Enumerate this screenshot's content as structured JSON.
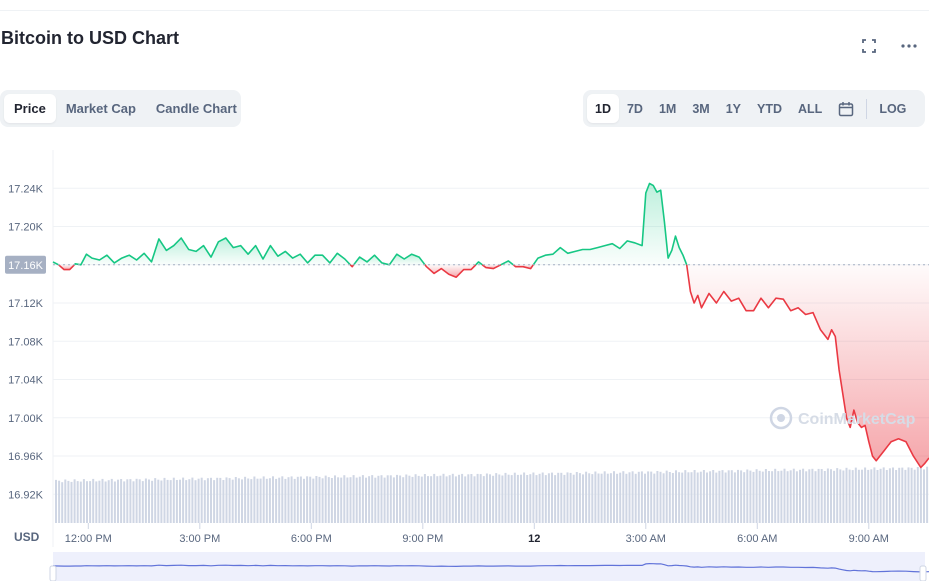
{
  "header": {
    "title": "Bitcoin to USD Chart"
  },
  "tabs": [
    {
      "label": "Price",
      "active": true
    },
    {
      "label": "Market Cap",
      "active": false
    },
    {
      "label": "Candle Chart",
      "active": false
    }
  ],
  "ranges": [
    {
      "label": "1D",
      "active": true
    },
    {
      "label": "7D",
      "active": false
    },
    {
      "label": "1M",
      "active": false
    },
    {
      "label": "3M",
      "active": false
    },
    {
      "label": "1Y",
      "active": false
    },
    {
      "label": "YTD",
      "active": false
    },
    {
      "label": "ALL",
      "active": false
    }
  ],
  "log_label": "LOG",
  "currency_label": "USD",
  "watermark": "CoinMarketCap",
  "colors": {
    "up": "#16c784",
    "down": "#ea3943",
    "volume": "#cfd6e4",
    "navigator": "#6173d9"
  },
  "chart_data": {
    "type": "line",
    "title": "Bitcoin to USD Chart",
    "ylabel": "USD",
    "ylim": [
      16.89,
      17.28
    ],
    "y_ticks": [
      "16.92K",
      "16.96K",
      "17.00K",
      "17.04K",
      "17.08K",
      "17.12K",
      "17.16K",
      "17.20K",
      "17.24K"
    ],
    "y_tick_values": [
      16.92,
      16.96,
      17.0,
      17.04,
      17.08,
      17.12,
      17.16,
      17.2,
      17.24
    ],
    "reference_price": 17.16,
    "reference_label": "17.16K",
    "x_ticks": [
      "12:00 PM",
      "3:00 PM",
      "6:00 PM",
      "9:00 PM",
      "12",
      "3:00 AM",
      "6:00 AM",
      "9:00 AM"
    ],
    "x_tick_hours": [
      12,
      15,
      18,
      21,
      24,
      27,
      30,
      33
    ],
    "xlim_hours": [
      11.05,
      34.62
    ],
    "series": [
      {
        "x": [
          11.05,
          11.2,
          11.35,
          11.5,
          11.65,
          11.8,
          11.95,
          12.1,
          12.3,
          12.5,
          12.7,
          12.9,
          13.1,
          13.3,
          13.5,
          13.7,
          13.9,
          14.1,
          14.3,
          14.5,
          14.7,
          14.9,
          15.1,
          15.3,
          15.5,
          15.7,
          15.9,
          16.1,
          16.3,
          16.5,
          16.7,
          16.9,
          17.1,
          17.3,
          17.5,
          17.7,
          17.9,
          18.1,
          18.3,
          18.5,
          18.7,
          18.9,
          19.1,
          19.3,
          19.5,
          19.7,
          19.9,
          20.1,
          20.3,
          20.5,
          20.7,
          20.9,
          21.1,
          21.3,
          21.5,
          21.7,
          21.9,
          22.1,
          22.3,
          22.5,
          22.7,
          22.9,
          23.1,
          23.3,
          23.5,
          23.7,
          23.9,
          24.1,
          24.3,
          24.5,
          24.7,
          24.9,
          25.1,
          25.3,
          25.5,
          25.7,
          25.9,
          26.1,
          26.3,
          26.5,
          26.7,
          26.9,
          27.0,
          27.1,
          27.2,
          27.3,
          27.4,
          27.5,
          27.6,
          27.7,
          27.8,
          27.9,
          28.0,
          28.1,
          28.2,
          28.3,
          28.4,
          28.5,
          28.7,
          28.9,
          29.1,
          29.3,
          29.5,
          29.7,
          29.9,
          30.1,
          30.3,
          30.5,
          30.7,
          30.9,
          31.1,
          31.3,
          31.5,
          31.7,
          31.9,
          32.0,
          32.1,
          32.2,
          32.3,
          32.4,
          32.5,
          32.6,
          32.7,
          32.8,
          32.9,
          33.0,
          33.1,
          33.2,
          33.4,
          33.6,
          33.8,
          34.0,
          34.2,
          34.4,
          34.5,
          34.62
        ],
        "y": [
          17.163,
          17.16,
          17.155,
          17.155,
          17.161,
          17.16,
          17.171,
          17.167,
          17.165,
          17.17,
          17.162,
          17.167,
          17.17,
          17.165,
          17.172,
          17.163,
          17.187,
          17.175,
          17.18,
          17.188,
          17.176,
          17.174,
          17.18,
          17.168,
          17.184,
          17.188,
          17.178,
          17.18,
          17.171,
          17.18,
          17.166,
          17.18,
          17.169,
          17.174,
          17.167,
          17.171,
          17.162,
          17.17,
          17.17,
          17.162,
          17.172,
          17.166,
          17.158,
          17.168,
          17.163,
          17.17,
          17.162,
          17.16,
          17.171,
          17.166,
          17.171,
          17.168,
          17.158,
          17.151,
          17.156,
          17.15,
          17.147,
          17.155,
          17.155,
          17.163,
          17.157,
          17.156,
          17.16,
          17.164,
          17.158,
          17.158,
          17.156,
          17.167,
          17.17,
          17.171,
          17.178,
          17.172,
          17.174,
          17.176,
          17.176,
          17.178,
          17.18,
          17.182,
          17.177,
          17.185,
          17.183,
          17.18,
          17.235,
          17.245,
          17.243,
          17.236,
          17.238,
          17.205,
          17.167,
          17.175,
          17.19,
          17.178,
          17.17,
          17.16,
          17.132,
          17.12,
          17.128,
          17.115,
          17.13,
          17.12,
          17.132,
          17.122,
          17.125,
          17.112,
          17.112,
          17.125,
          17.115,
          17.125,
          17.124,
          17.112,
          17.115,
          17.108,
          17.11,
          17.092,
          17.082,
          17.092,
          17.085,
          17.05,
          17.025,
          17.0,
          16.99,
          17.008,
          16.995,
          16.99,
          16.992,
          16.975,
          16.96,
          16.955,
          16.965,
          16.975,
          16.978,
          16.975,
          16.96,
          16.948,
          16.952,
          16.958
        ]
      }
    ]
  }
}
